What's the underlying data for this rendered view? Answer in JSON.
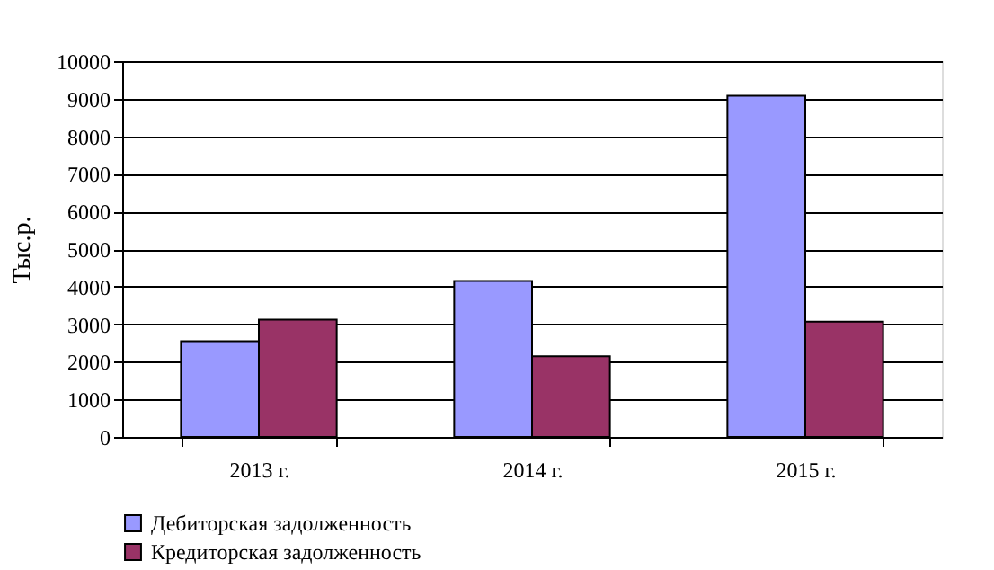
{
  "chart_data": {
    "type": "bar",
    "categories": [
      "2013 г.",
      "2014 г.",
      "2015 г."
    ],
    "ylabel": "Тыс.р.",
    "series": [
      {
        "name": "Дебиторская задолженность",
        "color": "#9999ff",
        "values": [
          2550,
          4150,
          9080
        ]
      },
      {
        "name": "Кредиторская задолженность",
        "color": "#993366",
        "values": [
          3120,
          2150,
          3070
        ]
      }
    ],
    "ylim": [
      0,
      10000
    ],
    "yticks": [
      0,
      1000,
      2000,
      3000,
      4000,
      5000,
      6000,
      7000,
      8000,
      9000,
      10000
    ],
    "grid": "y",
    "legend": "bottom"
  }
}
